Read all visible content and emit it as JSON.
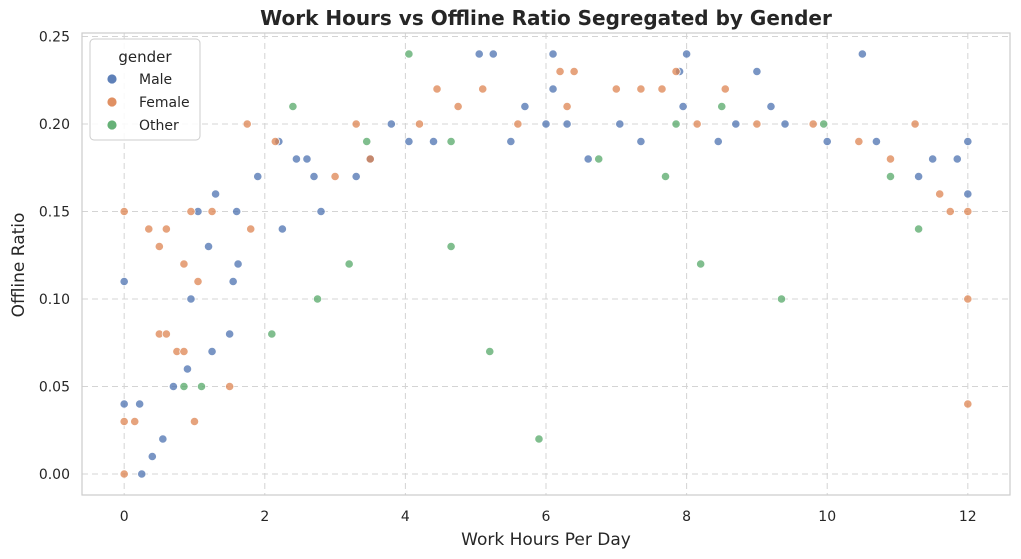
{
  "chart_data": {
    "type": "scatter",
    "title": "Work Hours vs Offline Ratio Segregated by Gender",
    "xlabel": "Work Hours Per Day",
    "ylabel": "Offline Ratio",
    "xlim": [
      -0.6,
      12.6
    ],
    "ylim": [
      -0.012,
      0.252
    ],
    "xticks": [
      0,
      2,
      4,
      6,
      8,
      10,
      12
    ],
    "yticks": [
      0.0,
      0.05,
      0.1,
      0.15,
      0.2,
      0.25
    ],
    "xtick_labels": [
      "0",
      "2",
      "4",
      "6",
      "8",
      "10",
      "12"
    ],
    "ytick_labels": [
      "0.00",
      "0.05",
      "0.10",
      "0.15",
      "0.20",
      "0.25"
    ],
    "grid": true,
    "legend": {
      "title": "gender",
      "placement": "top-left",
      "entries": [
        "Male",
        "Female",
        "Other"
      ]
    },
    "series": [
      {
        "name": "Male",
        "color": "#4c72b0",
        "points": [
          [
            0,
            0.11
          ],
          [
            0,
            0.04
          ],
          [
            0.22,
            0.04
          ],
          [
            0.25,
            0.0
          ],
          [
            0.4,
            0.01
          ],
          [
            0.55,
            0.02
          ],
          [
            0.7,
            0.05
          ],
          [
            0.9,
            0.06
          ],
          [
            0.95,
            0.1
          ],
          [
            1.05,
            0.15
          ],
          [
            1.2,
            0.13
          ],
          [
            1.25,
            0.07
          ],
          [
            1.3,
            0.16
          ],
          [
            1.5,
            0.08
          ],
          [
            1.55,
            0.11
          ],
          [
            1.6,
            0.15
          ],
          [
            1.62,
            0.12
          ],
          [
            1.9,
            0.17
          ],
          [
            2.2,
            0.19
          ],
          [
            2.25,
            0.14
          ],
          [
            2.45,
            0.18
          ],
          [
            2.6,
            0.18
          ],
          [
            2.7,
            0.17
          ],
          [
            2.8,
            0.15
          ],
          [
            3.3,
            0.17
          ],
          [
            3.5,
            0.18
          ],
          [
            3.8,
            0.2
          ],
          [
            4.05,
            0.19
          ],
          [
            4.4,
            0.19
          ],
          [
            5.05,
            0.24
          ],
          [
            5.25,
            0.24
          ],
          [
            5.5,
            0.19
          ],
          [
            5.7,
            0.21
          ],
          [
            6.0,
            0.2
          ],
          [
            6.1,
            0.24
          ],
          [
            6.1,
            0.22
          ],
          [
            6.3,
            0.2
          ],
          [
            6.6,
            0.18
          ],
          [
            7.05,
            0.2
          ],
          [
            7.35,
            0.19
          ],
          [
            7.9,
            0.23
          ],
          [
            8.0,
            0.24
          ],
          [
            7.95,
            0.21
          ],
          [
            8.45,
            0.19
          ],
          [
            8.7,
            0.2
          ],
          [
            9.0,
            0.23
          ],
          [
            9.2,
            0.21
          ],
          [
            9.4,
            0.2
          ],
          [
            10.5,
            0.24
          ],
          [
            10.7,
            0.19
          ],
          [
            11.5,
            0.18
          ],
          [
            11.85,
            0.18
          ],
          [
            12.0,
            0.19
          ],
          [
            12.0,
            0.16
          ],
          [
            11.3,
            0.17
          ],
          [
            10.0,
            0.19
          ]
        ]
      },
      {
        "name": "Female",
        "color": "#dd8452",
        "points": [
          [
            0,
            0.15
          ],
          [
            0,
            0.03
          ],
          [
            0,
            0.0
          ],
          [
            0.15,
            0.03
          ],
          [
            0.35,
            0.14
          ],
          [
            0.5,
            0.13
          ],
          [
            0.6,
            0.14
          ],
          [
            0.5,
            0.08
          ],
          [
            0.6,
            0.08
          ],
          [
            0.75,
            0.07
          ],
          [
            0.85,
            0.12
          ],
          [
            0.85,
            0.07
          ],
          [
            0.95,
            0.15
          ],
          [
            1.0,
            0.03
          ],
          [
            1.05,
            0.11
          ],
          [
            1.25,
            0.15
          ],
          [
            1.5,
            0.05
          ],
          [
            1.75,
            0.2
          ],
          [
            1.8,
            0.14
          ],
          [
            2.15,
            0.19
          ],
          [
            3.0,
            0.17
          ],
          [
            3.3,
            0.2
          ],
          [
            3.5,
            0.18
          ],
          [
            4.2,
            0.2
          ],
          [
            4.45,
            0.22
          ],
          [
            4.75,
            0.21
          ],
          [
            5.1,
            0.22
          ],
          [
            5.6,
            0.2
          ],
          [
            6.2,
            0.23
          ],
          [
            6.4,
            0.23
          ],
          [
            6.3,
            0.21
          ],
          [
            7.0,
            0.22
          ],
          [
            7.35,
            0.22
          ],
          [
            7.65,
            0.22
          ],
          [
            7.85,
            0.23
          ],
          [
            8.15,
            0.2
          ],
          [
            8.55,
            0.22
          ],
          [
            9.0,
            0.2
          ],
          [
            9.8,
            0.2
          ],
          [
            10.45,
            0.19
          ],
          [
            10.9,
            0.18
          ],
          [
            11.25,
            0.2
          ],
          [
            11.6,
            0.16
          ],
          [
            11.75,
            0.15
          ],
          [
            12.0,
            0.15
          ],
          [
            12.0,
            0.04
          ],
          [
            12.0,
            0.1
          ]
        ]
      },
      {
        "name": "Other",
        "color": "#55a868",
        "points": [
          [
            0.85,
            0.05
          ],
          [
            1.1,
            0.05
          ],
          [
            2.1,
            0.08
          ],
          [
            2.4,
            0.21
          ],
          [
            2.75,
            0.1
          ],
          [
            3.45,
            0.19
          ],
          [
            4.05,
            0.24
          ],
          [
            4.65,
            0.19
          ],
          [
            4.65,
            0.13
          ],
          [
            5.9,
            0.02
          ],
          [
            6.75,
            0.18
          ],
          [
            7.7,
            0.17
          ],
          [
            7.85,
            0.2
          ],
          [
            8.5,
            0.21
          ],
          [
            9.95,
            0.2
          ],
          [
            10.9,
            0.17
          ],
          [
            11.3,
            0.14
          ],
          [
            9.35,
            0.1
          ],
          [
            8.2,
            0.12
          ],
          [
            5.2,
            0.07
          ],
          [
            3.2,
            0.12
          ]
        ]
      }
    ]
  }
}
